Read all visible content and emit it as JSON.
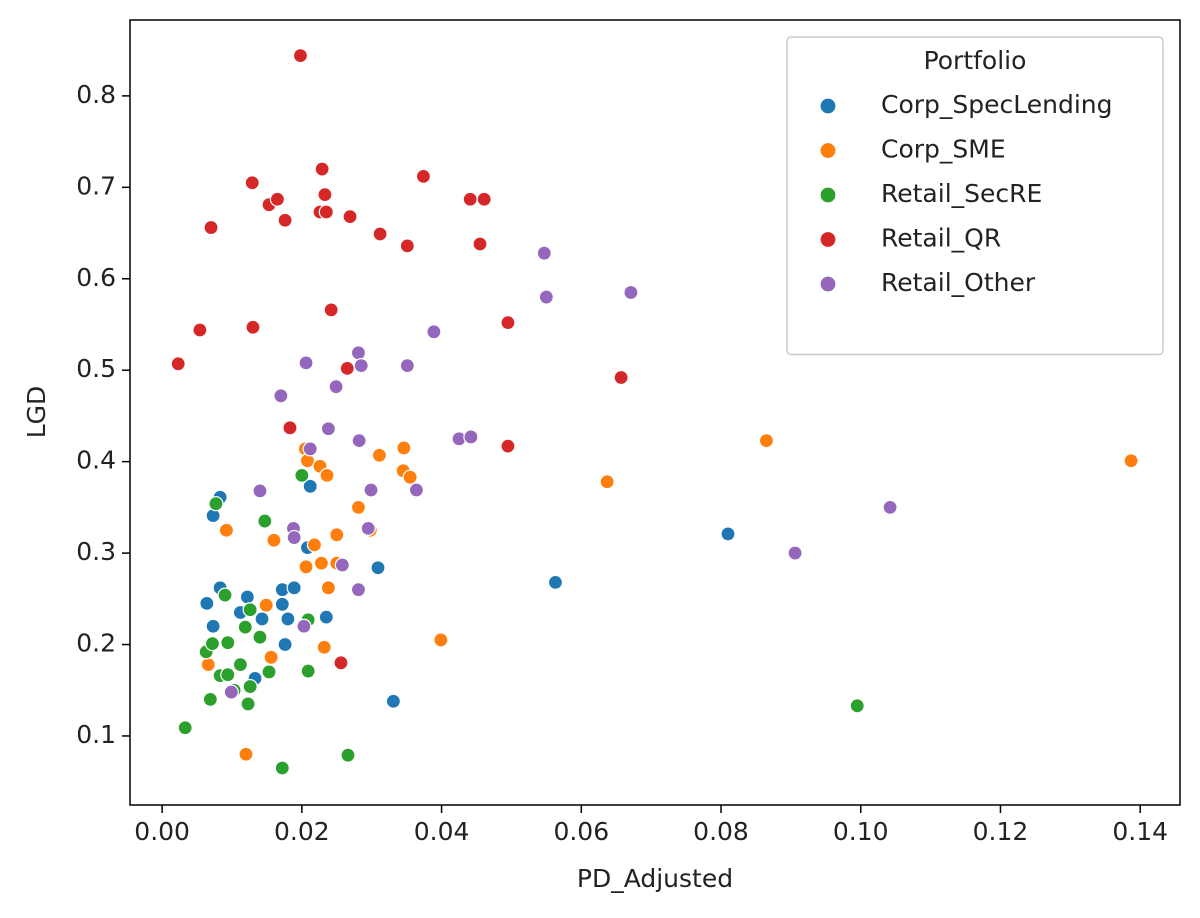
{
  "chart_data": {
    "type": "scatter",
    "x_label": "PD_Adjusted",
    "y_label": "LGD",
    "legend_title": "Portfolio",
    "legend_position": "upper right",
    "grid": false,
    "xlim": [
      -0.0046,
      0.1457
    ],
    "ylim": [
      0.0245,
      0.883
    ],
    "xticks": [
      {
        "value": 0,
        "label": "0.00"
      },
      {
        "value": 0.02,
        "label": "0.02"
      },
      {
        "value": 0.04,
        "label": "0.04"
      },
      {
        "value": 0.06,
        "label": "0.06"
      },
      {
        "value": 0.08,
        "label": "0.08"
      },
      {
        "value": 0.1,
        "label": "0.10"
      },
      {
        "value": 0.12,
        "label": "0.12"
      },
      {
        "value": 0.14,
        "label": "0.14"
      }
    ],
    "yticks": [
      0.1,
      0.2,
      0.3,
      0.4,
      0.5,
      0.6,
      0.7,
      0.8
    ],
    "series": [
      {
        "name": "Corp_SpecLending",
        "color": "#1f77b4",
        "x": [
          0.0073,
          0.0083,
          0.0064,
          0.0073,
          0.0083,
          0.0122,
          0.0112,
          0.0143,
          0.0172,
          0.0189,
          0.0172,
          0.018,
          0.0176,
          0.0133,
          0.0208,
          0.0212,
          0.0235,
          0.0309,
          0.0331,
          0.0563,
          0.081
        ],
        "values": [
          0.341,
          0.361,
          0.245,
          0.22,
          0.262,
          0.252,
          0.235,
          0.228,
          0.26,
          0.262,
          0.244,
          0.228,
          0.2,
          0.163,
          0.306,
          0.373,
          0.23,
          0.284,
          0.138,
          0.268,
          0.321
        ]
      },
      {
        "name": "Corp_SME",
        "color": "#ff7f0e",
        "x": [
          0.0092,
          0.0066,
          0.012,
          0.0149,
          0.0156,
          0.016,
          0.0205,
          0.0208,
          0.0226,
          0.0236,
          0.0206,
          0.0218,
          0.0228,
          0.025,
          0.025,
          0.0238,
          0.0232,
          0.0281,
          0.0311,
          0.0346,
          0.0345,
          0.0355,
          0.0298,
          0.0399,
          0.0637,
          0.0865,
          0.1387
        ],
        "values": [
          0.325,
          0.178,
          0.08,
          0.243,
          0.186,
          0.314,
          0.414,
          0.401,
          0.395,
          0.385,
          0.285,
          0.309,
          0.289,
          0.289,
          0.32,
          0.262,
          0.197,
          0.35,
          0.407,
          0.415,
          0.39,
          0.383,
          0.325,
          0.205,
          0.378,
          0.423,
          0.401
        ]
      },
      {
        "name": "Retail_SecRE",
        "color": "#2ca02c",
        "x": [
          0.0033,
          0.0063,
          0.0069,
          0.0072,
          0.0077,
          0.0083,
          0.009,
          0.0094,
          0.0094,
          0.0103,
          0.0112,
          0.0119,
          0.0123,
          0.0126,
          0.0126,
          0.014,
          0.0147,
          0.0153,
          0.0172,
          0.02,
          0.0209,
          0.0209,
          0.0266,
          0.0995
        ],
        "values": [
          0.109,
          0.192,
          0.14,
          0.201,
          0.354,
          0.166,
          0.254,
          0.202,
          0.167,
          0.15,
          0.178,
          0.219,
          0.135,
          0.238,
          0.154,
          0.208,
          0.335,
          0.17,
          0.065,
          0.385,
          0.227,
          0.171,
          0.079,
          0.133
        ]
      },
      {
        "name": "Retail_QR",
        "color": "#d62728",
        "x": [
          0.0023,
          0.0054,
          0.007,
          0.0129,
          0.013,
          0.0153,
          0.0165,
          0.0176,
          0.0183,
          0.0198,
          0.0226,
          0.0229,
          0.0233,
          0.0235,
          0.0242,
          0.0256,
          0.0265,
          0.0269,
          0.0312,
          0.0351,
          0.0374,
          0.0441,
          0.0461,
          0.0455,
          0.0495,
          0.0495,
          0.0657
        ],
        "values": [
          0.507,
          0.544,
          0.656,
          0.705,
          0.547,
          0.681,
          0.687,
          0.664,
          0.437,
          0.844,
          0.673,
          0.72,
          0.692,
          0.673,
          0.566,
          0.18,
          0.502,
          0.668,
          0.649,
          0.636,
          0.712,
          0.687,
          0.687,
          0.638,
          0.552,
          0.417,
          0.492
        ]
      },
      {
        "name": "Retail_Other",
        "color": "#9467bd",
        "x": [
          0.0099,
          0.014,
          0.017,
          0.0188,
          0.0189,
          0.0203,
          0.0206,
          0.0212,
          0.0238,
          0.0249,
          0.0258,
          0.0281,
          0.0285,
          0.0282,
          0.0281,
          0.0299,
          0.0295,
          0.0351,
          0.0364,
          0.0389,
          0.0425,
          0.0442,
          0.0547,
          0.055,
          0.0671,
          0.0906,
          0.1042
        ],
        "values": [
          0.148,
          0.368,
          0.472,
          0.327,
          0.317,
          0.22,
          0.508,
          0.414,
          0.436,
          0.482,
          0.287,
          0.519,
          0.505,
          0.423,
          0.26,
          0.369,
          0.327,
          0.505,
          0.369,
          0.542,
          0.425,
          0.427,
          0.628,
          0.58,
          0.585,
          0.3,
          0.35
        ]
      }
    ]
  }
}
